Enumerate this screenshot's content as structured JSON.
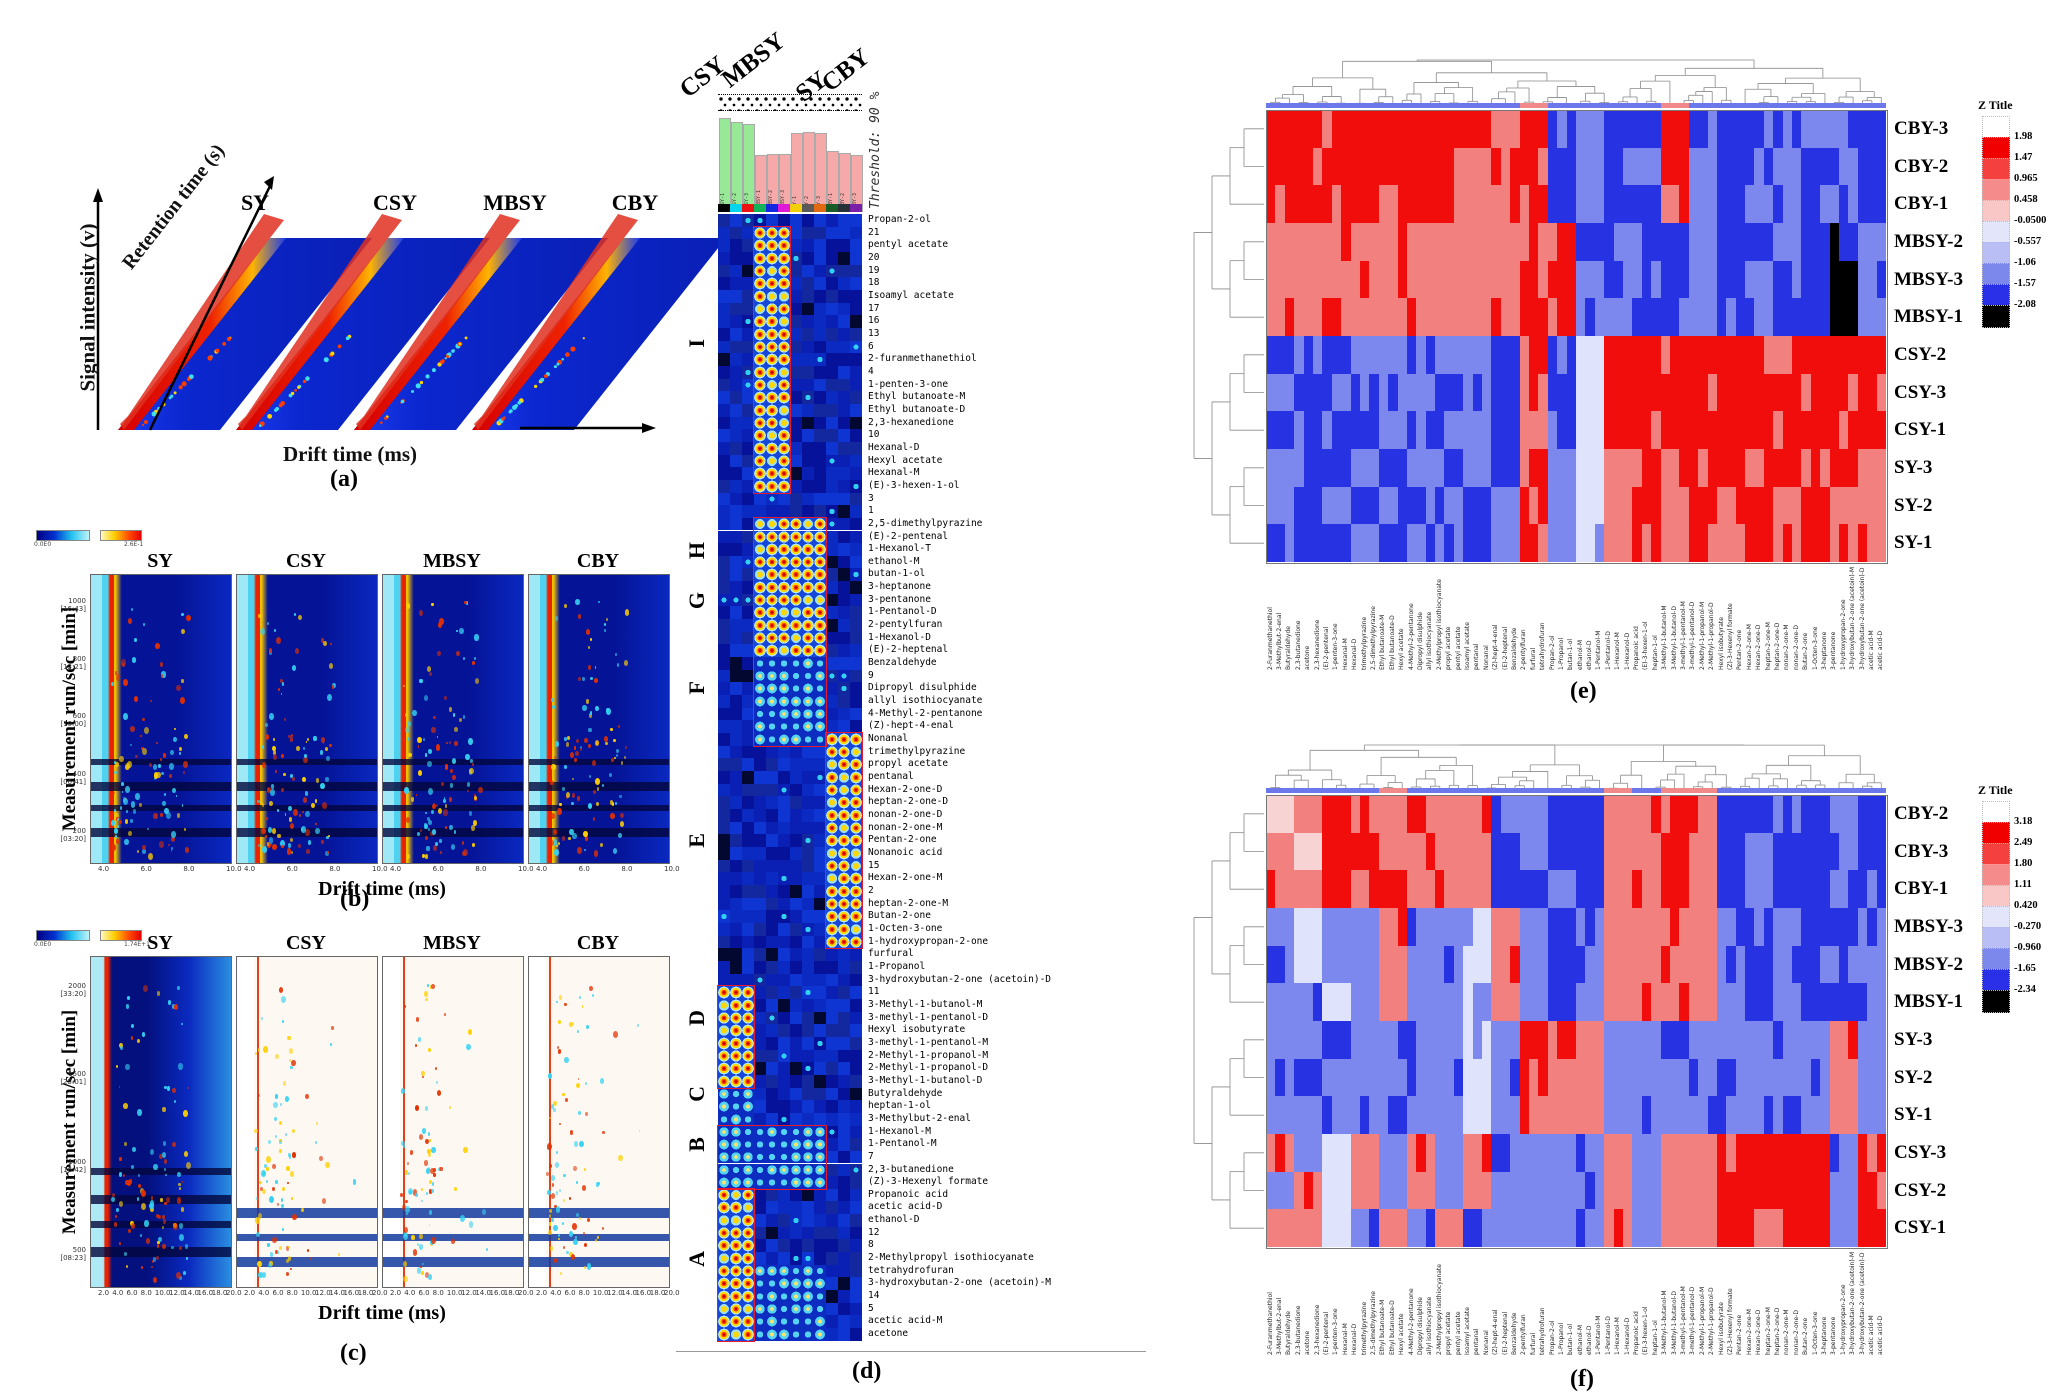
{
  "captions": {
    "a": "(a)",
    "b": "(b)",
    "c": "(c)",
    "d": "(d)",
    "e": "(e)",
    "f": "(f)"
  },
  "panel_a": {
    "samples": [
      "SY",
      "CSY",
      "MBSY",
      "CBY"
    ],
    "xlabel": "Drift time (ms)",
    "ylabel": "Signal intensity (v)",
    "zlabel": "Retention time (s)"
  },
  "panel_b": {
    "samples": [
      "SY",
      "CSY",
      "MBSY",
      "CBY"
    ],
    "xlabel": "Drift time (ms)",
    "ylabel": "Measurement run/sec [min]",
    "yticks": [
      {
        "v": "1000",
        "t": "[16:43]"
      },
      {
        "v": "800",
        "t": "[13:21]"
      },
      {
        "v": "600",
        "t": "[10:00]"
      },
      {
        "v": "400",
        "t": "[06:41]"
      },
      {
        "v": "200",
        "t": "[03:20]"
      }
    ],
    "xticks": [
      "4.0",
      "6.0",
      "8.0",
      "10.0"
    ],
    "colorbar_min": "0.0E0",
    "colorbar_max": "2.6E-1"
  },
  "panel_c": {
    "samples": [
      "SY",
      "CSY",
      "MBSY",
      "CBY"
    ],
    "xlabel": "Drift time (ms)",
    "ylabel": "Measurement run/sec [min]",
    "yticks": [
      {
        "v": "2000",
        "t": "[33:20]"
      },
      {
        "v": "1500",
        "t": "[25:01]"
      },
      {
        "v": "1000",
        "t": "[16:42]"
      },
      {
        "v": "500",
        "t": "[08:23]"
      }
    ],
    "xticks": [
      "2.0",
      "4.0",
      "6.0",
      "8.0",
      "10.0",
      "12.0",
      "14.0",
      "16.0",
      "18.0",
      "20.0"
    ],
    "colorbar_min": "0.0E0",
    "colorbar_max": "1.74E+1"
  },
  "panel_d": {
    "group_labels": [
      "CSY",
      "MBSY",
      "SY",
      "CBY"
    ],
    "threshold": "Threshold: 90 %",
    "samples": [
      {
        "id": "CSY-1",
        "bar": 100,
        "color": "#97e897"
      },
      {
        "id": "CSY-2",
        "bar": 96,
        "color": "#97e897"
      },
      {
        "id": "CSY-3",
        "bar": 94,
        "color": "#97e897"
      },
      {
        "id": "MBSY-1",
        "bar": 60,
        "color": "#f5a9a9"
      },
      {
        "id": "MBSY-2",
        "bar": 61,
        "color": "#f5a9a9"
      },
      {
        "id": "MBSY-3",
        "bar": 61,
        "color": "#f5a9a9"
      },
      {
        "id": "SY-1",
        "bar": 84,
        "color": "#f5a9a9"
      },
      {
        "id": "SY-2",
        "bar": 85,
        "color": "#f5a9a9"
      },
      {
        "id": "SY-3",
        "bar": 84,
        "color": "#f5a9a9"
      },
      {
        "id": "CBY-1",
        "bar": 64,
        "color": "#f5a9a9"
      },
      {
        "id": "CBY-2",
        "bar": 62,
        "color": "#f5a9a9"
      },
      {
        "id": "CBY-3",
        "bar": 60,
        "color": "#f5a9a9"
      }
    ],
    "strip_colors": [
      "#000000",
      "#00d5ee",
      "#ee1111",
      "#13b35a",
      "#1327e0",
      "#e018d8",
      "#f2cf0c",
      "#5a5a5a",
      "#e06a12",
      "#175c26",
      "#28313a",
      "#7c1fa8"
    ],
    "cluster_letters": [
      {
        "label": "I",
        "row": 11
      },
      {
        "label": "H",
        "row": 27
      },
      {
        "label": "G",
        "row": 31
      },
      {
        "label": "F",
        "row": 38
      },
      {
        "label": "E",
        "row": 50
      },
      {
        "label": "D",
        "row": 64
      },
      {
        "label": "C",
        "row": 70
      },
      {
        "label": "B",
        "row": 74
      },
      {
        "label": "A",
        "row": 83
      }
    ],
    "rows": [
      "Propan-2-ol",
      "21",
      "pentyl acetate",
      "20",
      "19",
      "18",
      "Isoamyl acetate",
      "17",
      "16",
      "13",
      "6",
      "2-furanmethanethiol",
      "4",
      "1-penten-3-one",
      "Ethyl butanoate-M",
      "Ethyl butanoate-D",
      "2,3-hexanedione",
      "10",
      "Hexanal-D",
      "Hexyl acetate",
      "Hexanal-M",
      "(E)-3-hexen-1-ol",
      "3",
      "1",
      "2,5-dimethylpyrazine",
      "(E)-2-pentenal",
      "1-Hexanol-T",
      "ethanol-M",
      "butan-1-ol",
      "3-heptanone",
      "3-pentanone",
      "1-Pentanol-D",
      "2-pentylfuran",
      "1-Hexanol-D",
      "(E)-2-heptenal",
      "Benzaldehyde",
      "9",
      "Dipropyl disulphide",
      "allyl isothiocyanate",
      "4-Methyl-2-pentanone",
      "(Z)-hept-4-enal",
      "Nonanal",
      "trimethylpyrazine",
      "propyl acetate",
      "pentanal",
      "Hexan-2-one-D",
      "heptan-2-one-D",
      "nonan-2-one-D",
      "nonan-2-one-M",
      "Pentan-2-one",
      "Nonanoic acid",
      "15",
      "Hexan-2-one-M",
      "2",
      "heptan-2-one-M",
      "Butan-2-one",
      "1-Octen-3-one",
      "1-hydroxypropan-2-one",
      "furfural",
      "1-Propanol",
      "3-hydroxybutan-2-one (acetoin)-D",
      "11",
      "3-Methyl-1-butanol-M",
      "3-methyl-1-pentanol-D",
      "Hexyl isobutyrate",
      "3-methyl-1-pentanol-M",
      "2-Methyl-1-propanol-M",
      "2-Methyl-1-propanol-D",
      "3-Methyl-1-butanol-D",
      "Butyraldehyde",
      "heptan-1-ol",
      "3-Methylbut-2-enal",
      "1-Hexanol-M",
      "1-Pentanol-M",
      "7",
      "2,3-butanedione",
      "(Z)-3-Hexenyl formate",
      "Propanoic acid",
      "acetic acid-D",
      "ethanol-D",
      "12",
      "8",
      "2-Methylpropyl isothiocyanate",
      "tetrahydrofuran",
      "3-hydroxybutan-2-one (acetoin)-M",
      "14",
      "5",
      "acetic acid-M",
      "acetone"
    ],
    "hot_regions": [
      {
        "r0": 1,
        "r1": 21,
        "c0": 3,
        "c1": 5,
        "k": "hot"
      },
      {
        "r0": 24,
        "r1": 34,
        "c0": 3,
        "c1": 8,
        "k": "hot"
      },
      {
        "r0": 35,
        "r1": 41,
        "c0": 3,
        "c1": 8,
        "k": "warm"
      },
      {
        "r0": 41,
        "r1": 57,
        "c0": 9,
        "c1": 11,
        "k": "hot"
      },
      {
        "r0": 61,
        "r1": 68,
        "c0": 0,
        "c1": 2,
        "k": "hot"
      },
      {
        "r0": 69,
        "r1": 71,
        "c0": 0,
        "c1": 2,
        "k": "warm"
      },
      {
        "r0": 72,
        "r1": 76,
        "c0": 0,
        "c1": 8,
        "k": "warm"
      },
      {
        "r0": 77,
        "r1": 88,
        "c0": 0,
        "c1": 2,
        "k": "hot"
      },
      {
        "r0": 83,
        "r1": 88,
        "c0": 3,
        "c1": 8,
        "k": "warm"
      }
    ],
    "outlines": [
      {
        "r0": 1,
        "r1": 21,
        "c0": 3,
        "c1": 5
      },
      {
        "r0": 24,
        "r1": 41,
        "c0": 3,
        "c1": 8
      },
      {
        "r0": 41,
        "r1": 57,
        "c0": 9,
        "c1": 11
      },
      {
        "r0": 61,
        "r1": 68,
        "c0": 0,
        "c1": 2
      },
      {
        "r0": 72,
        "r1": 76,
        "c0": 0,
        "c1": 8
      },
      {
        "r0": 77,
        "r1": 88,
        "c0": 0,
        "c1": 2
      }
    ]
  },
  "compound_columns": [
    "2-Furanmethanethiol",
    "3-Methylbut-2-enal",
    "Butyraldehyde",
    "2,3-butanedione",
    "acetone",
    "2,3-hexanedione",
    "(E)-2-pentenal",
    "1-penten-3-one",
    "Hexanal-M",
    "Hexanal-D",
    "trimethylpyrazine",
    "2,5-dimethylpyrazine",
    "Ethyl butanoate-M",
    "Ethyl butanoate-D",
    "Hexyl acetate",
    "4-Methyl-2-pentanone",
    "Dipropyl disulphide",
    "allyl isothiocyanate",
    "2-Methylpropyl isothiocyanate",
    "propyl acetate",
    "pentyl acetate",
    "Isoamyl acetate",
    "pentanal",
    "Nonanal",
    "(Z)-hept-4-enal",
    "(E)-2-heptenal",
    "Benzaldehyde",
    "2-pentylfuran",
    "furfural",
    "tetrahydrofuran",
    "Propan-2-ol",
    "1-Propanol",
    "butan-1-ol",
    "ethanol-M",
    "ethanol-D",
    "1-Pentanol-M",
    "1-Pentanol-D",
    "1-Hexanol-M",
    "1-Hexanol-D",
    "Propanoic acid",
    "(E)-3-hexen-1-ol",
    "heptan-1-ol",
    "3-Methyl-1-butanol-M",
    "3-Methyl-1-butanol-D",
    "3-methyl-1-pentanol-M",
    "3-methyl-1-pentanol-D",
    "2-Methyl-1-propanol-M",
    "2-Methyl-1-propanol-D",
    "Hexyl isobutyrate",
    "(Z)-3-Hexenyl formate",
    "Pentan-2-one",
    "Hexan-2-one-M",
    "Hexan-2-one-D",
    "heptan-2-one-M",
    "heptan-2-one-D",
    "nonan-2-one-M",
    "nonan-2-one-D",
    "Butan-2-one",
    "1-Octen-3-one",
    "3-heptanone",
    "3-pentanone",
    "1-hydroxypropan-2-one",
    "3-hydroxybutan-2-one (acetoin)-M",
    "3-hydroxybutan-2-one (acetoin)-D",
    "acetic acid-M",
    "acetic acid-D"
  ],
  "panel_e": {
    "legend_title": "Z Title",
    "legend_values": [
      "1.98",
      "1.47",
      "0.965",
      "0.458",
      "-0.0500",
      "-0.557",
      "-1.06",
      "-1.57",
      "-2.08"
    ],
    "legend_colors": [
      "#ffffff",
      "#f10000",
      "#f4403f",
      "#f58c8b",
      "#f9c7c6",
      "#e3e6fb",
      "#b9bff5",
      "#7d88ec",
      "#2930e8",
      "#000000"
    ],
    "rows": [
      {
        "label": "CBY-3",
        "pattern": "RRRRRRRRrRBbBBRbBBBbbB"
      },
      {
        "label": "CBY-2",
        "pattern": "RRRRRRRrRRBbBbRbBBbBbB"
      },
      {
        "label": "CBY-1",
        "pattern": "RRRRRRRrrRBbBBrbBbBBbB"
      },
      {
        "label": "MBSY-2",
        "pattern": "rrrrrrrrrRRBbBBbBBbBKb"
      },
      {
        "label": "MBSY-3",
        "pattern": "rrrrrrrrrRRbBbBbBbBBKb"
      },
      {
        "label": "MBSY-1",
        "pattern": "rrrrrrrrrRRBbbBbBbBBKb"
      },
      {
        "label": "CSY-2",
        "pattern": "BbBbbBbbBrBwRRRRRRRRRR"
      },
      {
        "label": "CSY-3",
        "pattern": "bBbBbbBbBrBwRRRRRRRRRR"
      },
      {
        "label": "CSY-1",
        "pattern": "BbbBbBbbBrBwRRRRRRRRRR"
      },
      {
        "label": "SY-3",
        "pattern": "bBBbBbBbBRbwrRrRRrRrRr"
      },
      {
        "label": "SY-2",
        "pattern": "bBbBbBbBbRbwrRrRrRrRrr"
      },
      {
        "label": "SY-1",
        "pattern": "bBBbBbbBbRbwrRrRrRrRrr"
      }
    ]
  },
  "panel_f": {
    "legend_title": "Z Title",
    "legend_values": [
      "3.18",
      "2.49",
      "1.80",
      "1.11",
      "0.420",
      "-0.270",
      "-0.960",
      "-1.65",
      "-2.34"
    ],
    "legend_colors": [
      "#ffffff",
      "#f10000",
      "#f4403f",
      "#f58c8b",
      "#f9c7c6",
      "#e3e6fb",
      "#b9bff5",
      "#7d88ec",
      "#2930e8",
      "#000000"
    ],
    "rows": [
      {
        "label": "CBY-2",
        "pattern": "prRRrRrrBbBBrrRrBBbBbB"
      },
      {
        "label": "CBY-3",
        "pattern": "rpRRrRrrBbBBrrRrBbBBbB"
      },
      {
        "label": "CBY-1",
        "pattern": "rrRrRrrrBBbBrrRrBbBBbB"
      },
      {
        "label": "MBSY-3",
        "pattern": "bwbbrbbwrbBbrrrrbBbBBb"
      },
      {
        "label": "MBSY-2",
        "pattern": "bwbbrbbwrbBbrrrrbBbBBb"
      },
      {
        "label": "MBSY-1",
        "pattern": "bbwbrbbwrbBbrrrrbBbBBb"
      },
      {
        "label": "SY-3",
        "pattern": "bbBbbbbwbRRrbbBbbbBbrb"
      },
      {
        "label": "SY-2",
        "pattern": "bBbbbbbwbRrrbbbbBbbbrb"
      },
      {
        "label": "SY-1",
        "pattern": "bbbbBbbwbrrrbbbbbbBbrb"
      },
      {
        "label": "CSY-3",
        "pattern": "rbwrbrbrbbbbrbrrRRRRbR"
      },
      {
        "label": "CSY-2",
        "pattern": "brwrbrbrbbbbrbrrRRRRbR"
      },
      {
        "label": "CSY-1",
        "pattern": "rrwbrbrbbbbbrbrrRrRRbR"
      }
    ]
  },
  "chart_data": [
    {
      "id": "a",
      "type": "heatmap",
      "style": "3d-topographic-surfaces",
      "series": [
        "SY",
        "CSY",
        "MBSY",
        "CBY"
      ],
      "xlabel": "Drift time (ms)",
      "ylabel": "Signal intensity (v)",
      "zlabel": "Retention time (s)"
    },
    {
      "id": "b",
      "type": "heatmap",
      "style": "gc-ims-2d",
      "series": [
        "SY",
        "CSY",
        "MBSY",
        "CBY"
      ],
      "xlabel": "Drift time (ms)",
      "ylabel": "Measurement run/sec [min]",
      "x_range": [
        4.0,
        10.0
      ],
      "y_range": [
        0,
        1000
      ]
    },
    {
      "id": "c",
      "type": "heatmap",
      "style": "gc-ims-difference",
      "series": [
        "SY",
        "CSY",
        "MBSY",
        "CBY"
      ],
      "xlabel": "Drift time (ms)",
      "ylabel": "Measurement run/sec [min]",
      "x_range": [
        2.0,
        20.0
      ],
      "y_range": [
        0,
        2000
      ]
    },
    {
      "id": "d",
      "type": "heatmap",
      "style": "fingerprint-gallery",
      "rows_key": "panel_d.rows",
      "columns_key": "panel_d.samples",
      "clusters": [
        "A",
        "B",
        "C",
        "D",
        "E",
        "F",
        "G",
        "H",
        "I"
      ],
      "threshold": "Threshold: 90 %"
    },
    {
      "id": "e",
      "type": "heatmap",
      "style": "clustered-zscore",
      "rows_key": "panel_e.rows",
      "columns_key": "compound_columns",
      "legend": {
        "title": "Z Title",
        "values": [
          1.98,
          1.47,
          0.965,
          0.458,
          -0.05,
          -0.557,
          -1.06,
          -1.57,
          -2.08
        ]
      }
    },
    {
      "id": "f",
      "type": "heatmap",
      "style": "clustered-zscore",
      "rows_key": "panel_f.rows",
      "columns_key": "compound_columns",
      "legend": {
        "title": "Z Title",
        "values": [
          3.18,
          2.49,
          1.8,
          1.11,
          0.42,
          -0.27,
          -0.96,
          -1.65,
          -2.34
        ]
      }
    }
  ]
}
